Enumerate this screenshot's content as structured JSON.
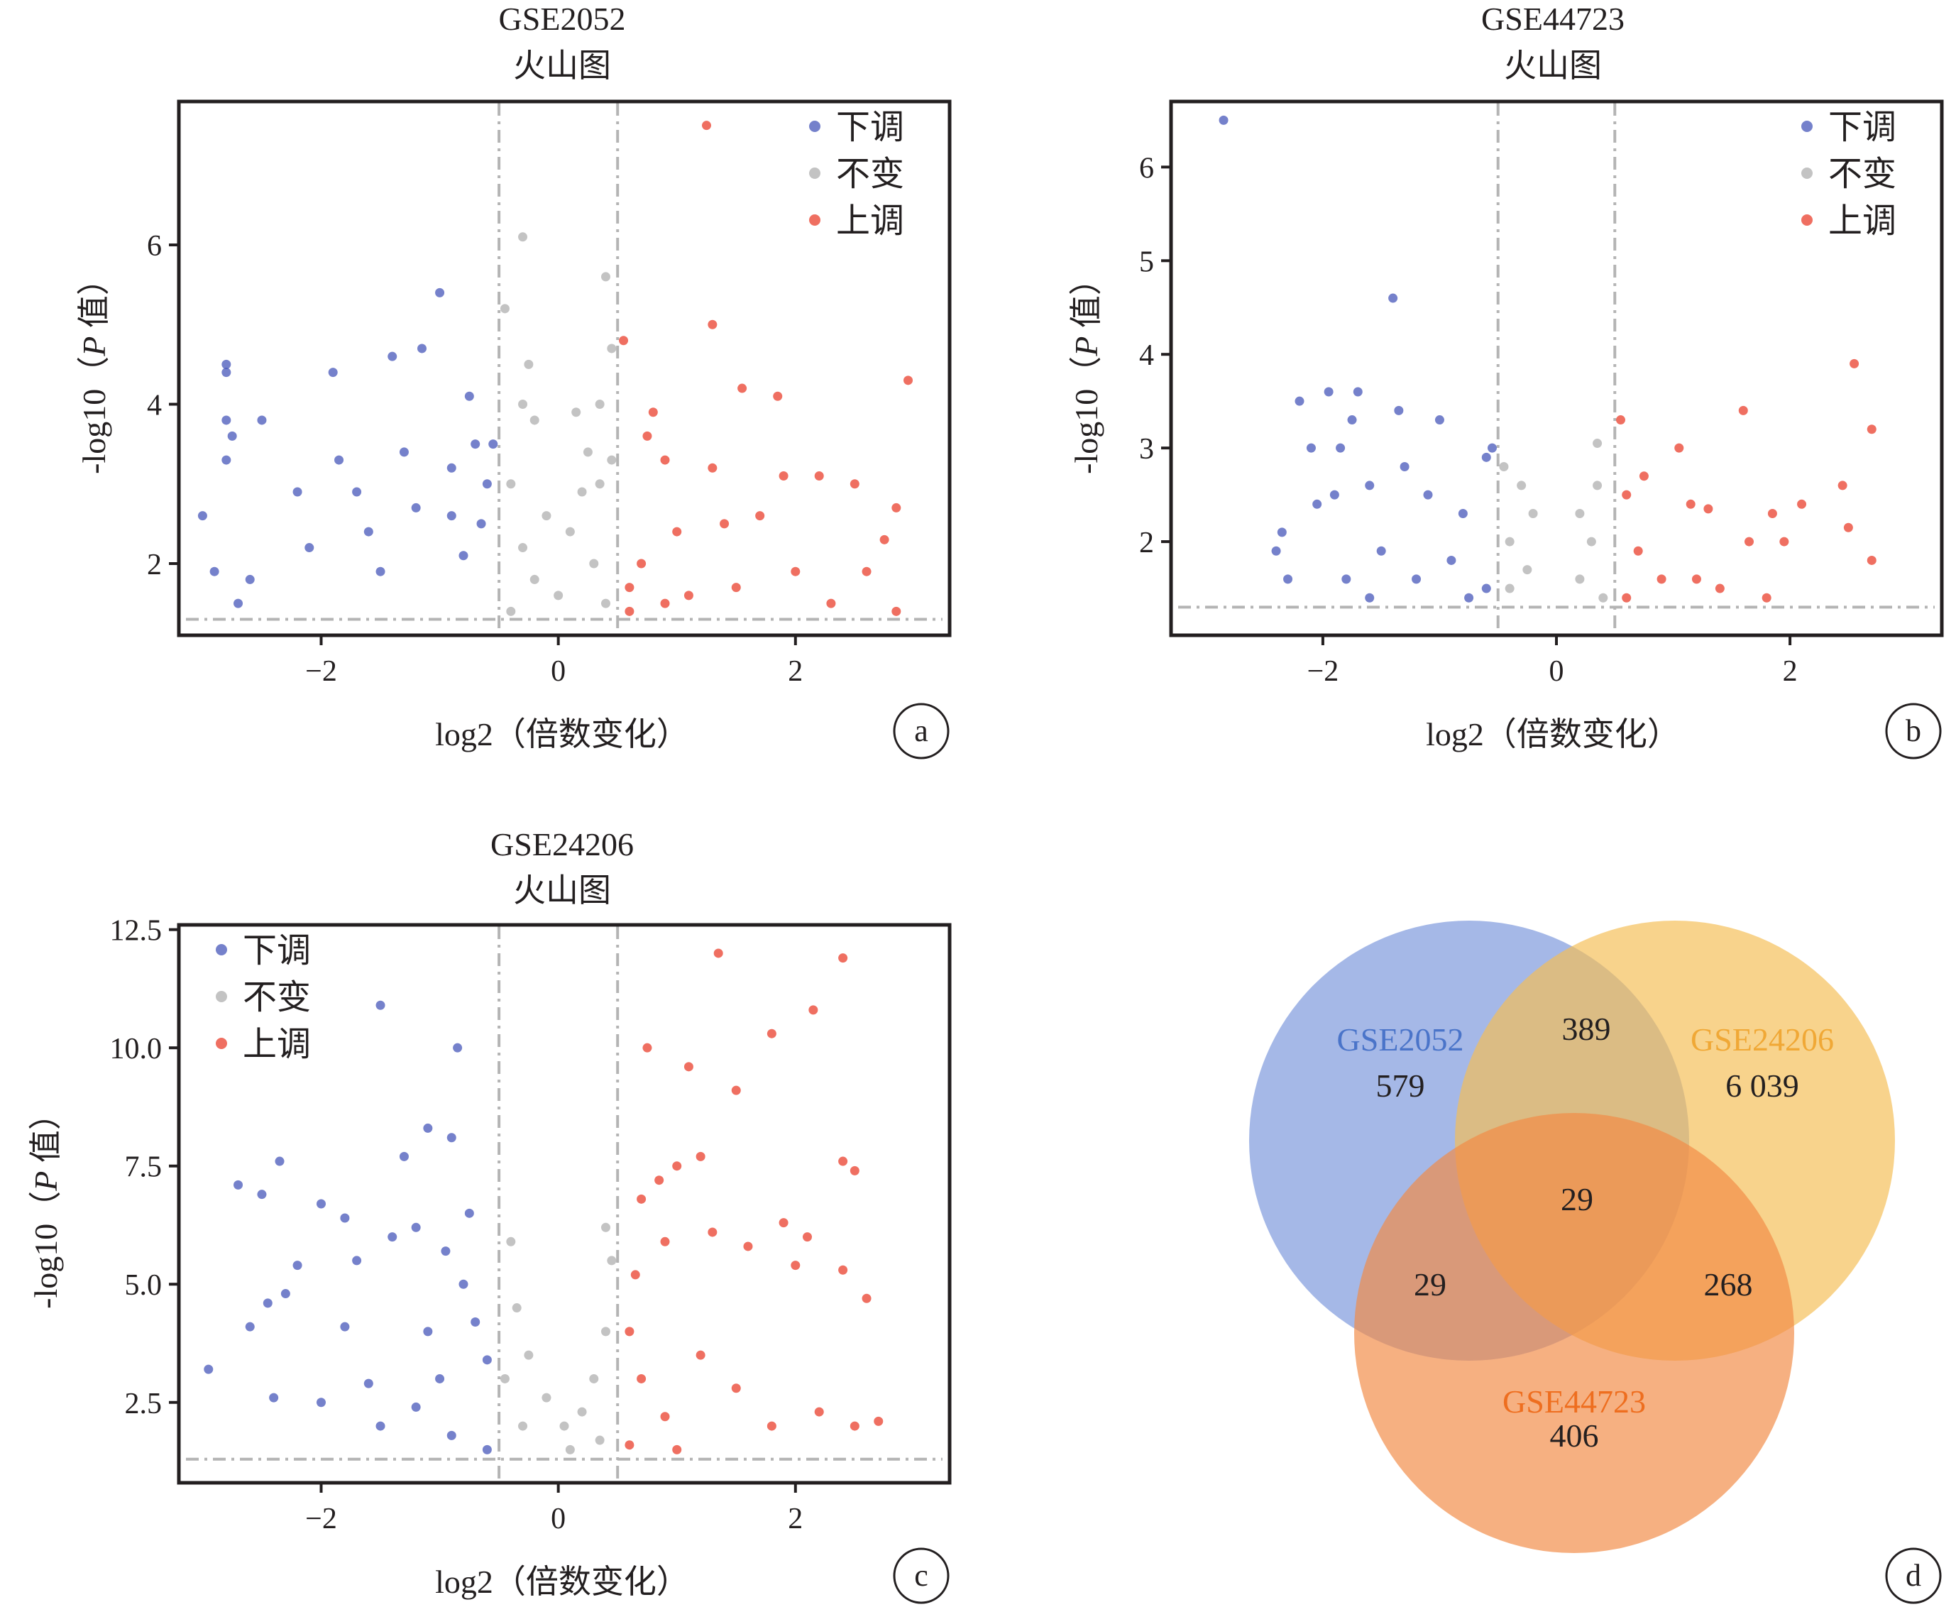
{
  "colors": {
    "down": "#3b4bb5",
    "none": "#a9a9a9",
    "up": "#e8321e",
    "axis": "#231f20",
    "cutoff_line": "#b4b4b4",
    "venn_gse2052": "#7b97db",
    "venn_gse24206": "#f5be55",
    "venn_gse44723": "#f28a46",
    "venn_label_gse2052": "#4a74c9",
    "venn_label_gse24206": "#f0a836",
    "venn_label_gse44723": "#ee6e1f"
  },
  "chart_data": [
    {
      "type": "scatter",
      "panel": "a",
      "title": "GSE2052",
      "subtitle": "火山图",
      "xlabel": "log2（倍数变化）",
      "ylabel_prefix": "-log10（",
      "ylabel_italic": "P",
      "ylabel_suffix": " 值）",
      "xlim": [
        -3.2,
        3.3
      ],
      "ylim": [
        1.1,
        7.8
      ],
      "xticks": [
        -2,
        0,
        2
      ],
      "xtick_labels": [
        "−2",
        "0",
        "2"
      ],
      "yticks": [
        2,
        4,
        6
      ],
      "ytick_labels": [
        "2",
        "4",
        "6"
      ],
      "fc_cutoff": 0.5,
      "p_cutoff_y": 1.3,
      "legend": {
        "position": "top-right",
        "labels": [
          "下调",
          "不变",
          "上调"
        ]
      },
      "series": [
        {
          "name": "下调",
          "points": [
            [
              -3.0,
              2.6
            ],
            [
              -2.9,
              1.9
            ],
            [
              -2.8,
              4.5
            ],
            [
              -2.8,
              4.4
            ],
            [
              -2.8,
              3.8
            ],
            [
              -2.75,
              3.6
            ],
            [
              -2.8,
              3.3
            ],
            [
              -2.5,
              3.8
            ],
            [
              -2.6,
              1.8
            ],
            [
              -2.7,
              1.5
            ],
            [
              -2.2,
              2.9
            ],
            [
              -2.1,
              2.2
            ],
            [
              -1.9,
              4.4
            ],
            [
              -1.85,
              3.3
            ],
            [
              -1.7,
              2.9
            ],
            [
              -1.6,
              2.4
            ],
            [
              -1.4,
              4.6
            ],
            [
              -1.3,
              3.4
            ],
            [
              -1.15,
              4.7
            ],
            [
              -1.0,
              5.4
            ],
            [
              -0.9,
              2.6
            ],
            [
              -0.75,
              4.1
            ],
            [
              -0.7,
              3.5
            ],
            [
              -0.6,
              3.0
            ],
            [
              -0.55,
              3.5
            ],
            [
              -1.5,
              1.9
            ],
            [
              -1.2,
              2.7
            ],
            [
              -0.9,
              3.2
            ],
            [
              -0.8,
              2.1
            ],
            [
              -0.65,
              2.5
            ]
          ]
        },
        {
          "name": "不变",
          "points": [
            [
              -0.3,
              6.1
            ],
            [
              -0.45,
              5.2
            ],
            [
              -0.25,
              4.5
            ],
            [
              -0.3,
              4.0
            ],
            [
              -0.2,
              3.8
            ],
            [
              0.15,
              3.9
            ],
            [
              0.4,
              5.6
            ],
            [
              0.45,
              4.7
            ],
            [
              0.35,
              4.0
            ],
            [
              0.25,
              3.4
            ],
            [
              0.45,
              3.3
            ],
            [
              0.35,
              3.0
            ],
            [
              -0.4,
              3.0
            ],
            [
              -0.1,
              2.6
            ],
            [
              0.1,
              2.4
            ],
            [
              0.2,
              2.9
            ],
            [
              -0.3,
              2.2
            ],
            [
              0.3,
              2.0
            ],
            [
              -0.2,
              1.8
            ],
            [
              0.0,
              1.6
            ],
            [
              0.4,
              1.5
            ],
            [
              -0.4,
              1.4
            ]
          ]
        },
        {
          "name": "上调",
          "points": [
            [
              1.25,
              7.5
            ],
            [
              1.3,
              5.0
            ],
            [
              1.55,
              4.2
            ],
            [
              1.85,
              4.1
            ],
            [
              2.95,
              4.3
            ],
            [
              0.55,
              4.8
            ],
            [
              0.8,
              3.9
            ],
            [
              0.75,
              3.6
            ],
            [
              0.9,
              3.3
            ],
            [
              1.3,
              3.2
            ],
            [
              1.9,
              3.1
            ],
            [
              2.2,
              3.1
            ],
            [
              2.5,
              3.0
            ],
            [
              2.85,
              2.7
            ],
            [
              2.75,
              2.3
            ],
            [
              2.6,
              1.9
            ],
            [
              2.85,
              1.4
            ],
            [
              1.4,
              2.5
            ],
            [
              1.7,
              2.6
            ],
            [
              1.0,
              2.4
            ],
            [
              0.7,
              2.0
            ],
            [
              0.6,
              1.7
            ],
            [
              1.1,
              1.6
            ],
            [
              1.5,
              1.7
            ],
            [
              2.0,
              1.9
            ],
            [
              2.3,
              1.5
            ],
            [
              0.6,
              1.4
            ],
            [
              0.9,
              1.5
            ]
          ]
        }
      ]
    },
    {
      "type": "scatter",
      "panel": "b",
      "title": "GSE44723",
      "subtitle": "火山图",
      "xlabel": "log2（倍数变化）",
      "ylabel_prefix": "-log10（",
      "ylabel_italic": "P",
      "ylabel_suffix": " 值）",
      "xlim": [
        -3.3,
        3.3
      ],
      "ylim": [
        1.0,
        6.7
      ],
      "xticks": [
        -2,
        0,
        2
      ],
      "xtick_labels": [
        "−2",
        "0",
        "2"
      ],
      "yticks": [
        2,
        3,
        4,
        5,
        6
      ],
      "ytick_labels": [
        "2",
        "3",
        "4",
        "5",
        "6"
      ],
      "fc_cutoff": 0.5,
      "p_cutoff_y": 1.3,
      "legend": {
        "position": "top-right",
        "labels": [
          "下调",
          "不变",
          "上调"
        ]
      },
      "series": [
        {
          "name": "下调",
          "points": [
            [
              -2.85,
              6.5
            ],
            [
              -1.4,
              4.6
            ],
            [
              -2.2,
              3.5
            ],
            [
              -1.95,
              3.6
            ],
            [
              -1.7,
              3.6
            ],
            [
              -1.35,
              3.4
            ],
            [
              -1.0,
              3.3
            ],
            [
              -1.75,
              3.3
            ],
            [
              -1.85,
              3.0
            ],
            [
              -2.1,
              3.0
            ],
            [
              -1.3,
              2.8
            ],
            [
              -0.55,
              3.0
            ],
            [
              -0.6,
              2.9
            ],
            [
              -1.6,
              2.6
            ],
            [
              -2.35,
              2.1
            ],
            [
              -2.4,
              1.9
            ],
            [
              -2.05,
              2.4
            ],
            [
              -1.9,
              2.5
            ],
            [
              -1.1,
              2.5
            ],
            [
              -0.8,
              2.3
            ],
            [
              -1.5,
              1.9
            ],
            [
              -1.2,
              1.6
            ],
            [
              -0.75,
              1.4
            ],
            [
              -1.8,
              1.6
            ],
            [
              -0.9,
              1.8
            ],
            [
              -0.6,
              1.5
            ],
            [
              -2.3,
              1.6
            ],
            [
              -1.6,
              1.4
            ]
          ]
        },
        {
          "name": "不变",
          "points": [
            [
              0.35,
              3.05
            ],
            [
              -0.45,
              2.8
            ],
            [
              -0.3,
              2.6
            ],
            [
              0.35,
              2.6
            ],
            [
              -0.2,
              2.3
            ],
            [
              0.2,
              2.3
            ],
            [
              -0.4,
              2.0
            ],
            [
              0.3,
              2.0
            ],
            [
              -0.25,
              1.7
            ],
            [
              0.2,
              1.6
            ],
            [
              -0.4,
              1.5
            ],
            [
              0.4,
              1.4
            ]
          ]
        },
        {
          "name": "上调",
          "points": [
            [
              2.55,
              3.9
            ],
            [
              1.6,
              3.4
            ],
            [
              0.55,
              3.3
            ],
            [
              2.7,
              3.2
            ],
            [
              1.05,
              3.0
            ],
            [
              0.75,
              2.7
            ],
            [
              2.45,
              2.6
            ],
            [
              2.1,
              2.4
            ],
            [
              1.15,
              2.4
            ],
            [
              1.3,
              2.35
            ],
            [
              1.85,
              2.3
            ],
            [
              0.6,
              2.5
            ],
            [
              2.5,
              2.15
            ],
            [
              1.65,
              2.0
            ],
            [
              1.95,
              2.0
            ],
            [
              2.7,
              1.8
            ],
            [
              0.7,
              1.9
            ],
            [
              1.2,
              1.6
            ],
            [
              1.4,
              1.5
            ],
            [
              0.9,
              1.6
            ],
            [
              0.6,
              1.4
            ],
            [
              1.8,
              1.4
            ]
          ]
        }
      ]
    },
    {
      "type": "scatter",
      "panel": "c",
      "title": "GSE24206",
      "subtitle": "火山图",
      "xlabel": "log2（倍数变化）",
      "ylabel_prefix": "-log10（",
      "ylabel_italic": "P",
      "ylabel_suffix": " 值）",
      "xlim": [
        -3.2,
        3.3
      ],
      "ylim": [
        0.8,
        12.6
      ],
      "xticks": [
        -2,
        0,
        2
      ],
      "xtick_labels": [
        "−2",
        "0",
        "2"
      ],
      "yticks": [
        2.5,
        5.0,
        7.5,
        10.0,
        12.5
      ],
      "ytick_labels": [
        "2.5",
        "5.0",
        "7.5",
        "10.0",
        "12.5"
      ],
      "fc_cutoff": 0.5,
      "p_cutoff_y": 1.3,
      "legend": {
        "position": "top-left",
        "labels": [
          "下调",
          "不变",
          "上调"
        ]
      },
      "series": [
        {
          "name": "下调",
          "points": [
            [
              -1.5,
              10.9
            ],
            [
              -0.85,
              10.0
            ],
            [
              -1.1,
              8.3
            ],
            [
              -0.9,
              8.1
            ],
            [
              -1.3,
              7.7
            ],
            [
              -2.35,
              7.6
            ],
            [
              -2.7,
              7.1
            ],
            [
              -2.5,
              6.9
            ],
            [
              -2.0,
              6.7
            ],
            [
              -1.8,
              6.4
            ],
            [
              -2.2,
              5.4
            ],
            [
              -2.3,
              4.8
            ],
            [
              -2.45,
              4.6
            ],
            [
              -2.6,
              4.1
            ],
            [
              -2.95,
              3.2
            ],
            [
              -2.4,
              2.6
            ],
            [
              -1.6,
              2.9
            ],
            [
              -1.8,
              4.1
            ],
            [
              -1.7,
              5.5
            ],
            [
              -1.4,
              6.0
            ],
            [
              -1.2,
              6.2
            ],
            [
              -0.95,
              5.7
            ],
            [
              -0.8,
              5.0
            ],
            [
              -0.7,
              4.2
            ],
            [
              -0.6,
              3.4
            ],
            [
              -1.0,
              3.0
            ],
            [
              -1.2,
              2.4
            ],
            [
              -0.9,
              1.8
            ],
            [
              -0.6,
              1.5
            ],
            [
              -1.5,
              2.0
            ],
            [
              -2.0,
              2.5
            ],
            [
              -1.1,
              4.0
            ],
            [
              -0.75,
              6.5
            ]
          ]
        },
        {
          "name": "不变",
          "points": [
            [
              -0.4,
              5.9
            ],
            [
              -0.35,
              4.5
            ],
            [
              -0.25,
              3.5
            ],
            [
              -0.1,
              2.6
            ],
            [
              0.05,
              2.0
            ],
            [
              0.2,
              2.3
            ],
            [
              0.3,
              3.0
            ],
            [
              0.4,
              4.0
            ],
            [
              0.45,
              5.5
            ],
            [
              0.4,
              6.2
            ],
            [
              -0.45,
              3.0
            ],
            [
              -0.3,
              2.0
            ],
            [
              0.1,
              1.5
            ],
            [
              0.35,
              1.7
            ]
          ]
        },
        {
          "name": "上调",
          "points": [
            [
              1.35,
              12.0
            ],
            [
              2.4,
              11.9
            ],
            [
              2.15,
              10.8
            ],
            [
              1.8,
              10.3
            ],
            [
              0.75,
              10.0
            ],
            [
              1.1,
              9.6
            ],
            [
              1.5,
              9.1
            ],
            [
              2.4,
              7.6
            ],
            [
              2.5,
              7.4
            ],
            [
              1.2,
              7.7
            ],
            [
              1.0,
              7.5
            ],
            [
              0.85,
              7.2
            ],
            [
              0.7,
              6.8
            ],
            [
              1.9,
              6.3
            ],
            [
              2.1,
              6.0
            ],
            [
              2.0,
              5.4
            ],
            [
              2.6,
              4.7
            ],
            [
              2.4,
              5.3
            ],
            [
              1.6,
              5.8
            ],
            [
              1.3,
              6.1
            ],
            [
              0.9,
              5.9
            ],
            [
              0.65,
              5.2
            ],
            [
              0.6,
              4.0
            ],
            [
              0.7,
              3.0
            ],
            [
              0.9,
              2.2
            ],
            [
              1.2,
              3.5
            ],
            [
              1.5,
              2.8
            ],
            [
              1.8,
              2.0
            ],
            [
              2.2,
              2.3
            ],
            [
              2.5,
              2.0
            ],
            [
              2.7,
              2.1
            ],
            [
              0.6,
              1.6
            ],
            [
              1.0,
              1.5
            ]
          ]
        }
      ]
    },
    {
      "type": "venn",
      "panel": "d",
      "sets": [
        {
          "name": "GSE2052",
          "only": "579"
        },
        {
          "name": "GSE24206",
          "only": "6 039"
        },
        {
          "name": "GSE44723",
          "only": "406"
        }
      ],
      "intersections": {
        "GSE2052&GSE24206": "389",
        "GSE2052&GSE44723": "29",
        "GSE24206&GSE44723": "268",
        "all_three": "29"
      }
    }
  ]
}
